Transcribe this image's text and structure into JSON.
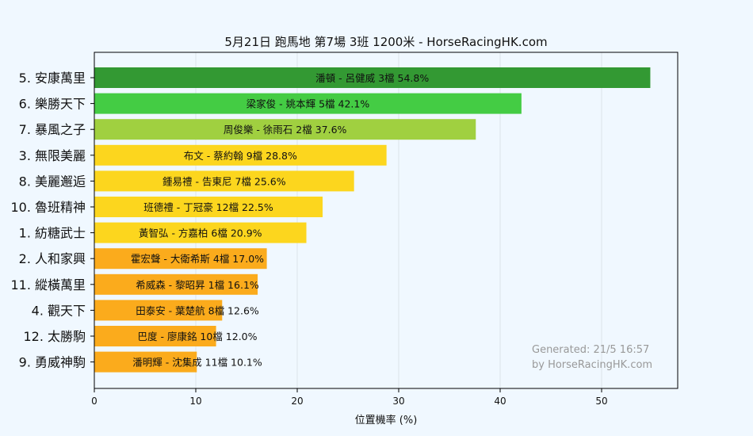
{
  "chart_data": {
    "type": "bar",
    "orientation": "horizontal",
    "title": "5月21日  跑馬地  第7場  3班  1200米 - HorseRacingHK.com",
    "xlabel": "位置機率 (%)",
    "ylabel": "",
    "xlim": [
      0,
      57.5
    ],
    "xticks": [
      0,
      10,
      20,
      30,
      40,
      50
    ],
    "grid": true,
    "categories": [
      "5. 安康萬里",
      "6. 樂勝天下",
      "7. 暴風之子",
      "3. 無限美麗",
      "8. 美麗邂逅",
      "10. 魯班精神",
      "1. 紡糖武士",
      "2. 人和家興",
      "11. 縱橫萬里",
      "4. 觀天下",
      "12. 太勝駒",
      "9. 勇威神駒"
    ],
    "values": [
      54.8,
      42.1,
      37.6,
      28.8,
      25.6,
      22.5,
      20.9,
      17.0,
      16.1,
      12.6,
      12.0,
      10.1
    ],
    "labels": [
      "潘頓 - 呂健威 3檔  54.8%",
      "梁家俊 - 姚本輝 5檔  42.1%",
      "周俊樂 - 徐雨石 2檔  37.6%",
      "布文 - 蔡約翰 9檔  28.8%",
      "鍾易禮 - 告東尼 7檔  25.6%",
      "班德禮 - 丁冠豪 12檔  22.5%",
      "黃智弘 - 方嘉柏 6檔  20.9%",
      "霍宏聲 - 大衛希斯 4檔  17.0%",
      "希威森 - 黎昭昇 1檔  16.1%",
      "田泰安 - 葉楚航 8檔  12.6%",
      "巴度 - 廖康銘 10檔  12.0%",
      "潘明輝 - 沈集成 11檔  10.1%"
    ],
    "colors": [
      "#339933",
      "#44cc44",
      "#a0d040",
      "#fcd61e",
      "#fcd61e",
      "#fcd61e",
      "#fcd61e",
      "#fbab1c",
      "#fbab1c",
      "#fbab1c",
      "#fbab1c",
      "#fbab1c"
    ],
    "annotations": [
      "Generated: 21/5 16:57",
      "by HorseRacingHK.com"
    ]
  }
}
